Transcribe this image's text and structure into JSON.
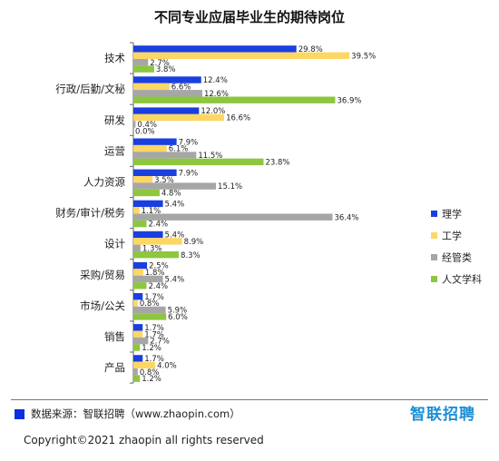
{
  "chart_data": {
    "type": "bar",
    "orientation": "horizontal",
    "title": "不同专业应届毕业生的期待岗位",
    "categories": [
      "技术",
      "行政/后勤/文秘",
      "研发",
      "运营",
      "人力资源",
      "财务/审计/税务",
      "设计",
      "采购/贸易",
      "市场/公关",
      "销售",
      "产品"
    ],
    "series": [
      {
        "name": "理学",
        "color": "#1a3fe0",
        "values": [
          29.8,
          12.4,
          12.0,
          7.9,
          7.9,
          5.4,
          5.4,
          2.5,
          1.7,
          1.7,
          1.7
        ],
        "labels": [
          "29.8%",
          "12.4%",
          "12.0%",
          "7.9%",
          "7.9%",
          "5.4%",
          "5.4%",
          "2.5%",
          "1.7%",
          "1.7%",
          "1.7%"
        ]
      },
      {
        "name": "工学",
        "color": "#fdd663",
        "values": [
          39.5,
          6.6,
          16.6,
          6.1,
          3.5,
          1.1,
          8.9,
          1.8,
          0.8,
          1.7,
          4.0
        ],
        "labels": [
          "39.5%",
          "6.6%",
          "16.6%",
          "6.1%",
          "3.5%",
          "1.1%",
          "8.9%",
          "1.8%",
          "0.8%",
          "1.7%",
          "4.0%"
        ]
      },
      {
        "name": "经管类",
        "color": "#a6a6a6",
        "values": [
          2.7,
          12.6,
          0.4,
          11.5,
          15.1,
          36.4,
          1.3,
          5.4,
          5.9,
          2.7,
          0.8
        ],
        "labels": [
          "2.7%",
          "12.6%",
          "0.4%",
          "11.5%",
          "15.1%",
          "36.4%",
          "1.3%",
          "5.4%",
          "5.9%",
          "2.7%",
          "0.8%"
        ]
      },
      {
        "name": "人文学科",
        "color": "#8dc63f",
        "values": [
          3.8,
          36.9,
          0.0,
          23.8,
          4.8,
          2.4,
          8.3,
          2.4,
          6.0,
          1.2,
          1.2
        ],
        "labels": [
          "3.8%",
          "36.9%",
          "0.0%",
          "23.8%",
          "4.8%",
          "2.4%",
          "8.3%",
          "2.4%",
          "6.0%",
          "1.2%",
          "1.2%"
        ]
      }
    ],
    "xlim": [
      0,
      40
    ],
    "legend_position": "right",
    "grid": false
  },
  "footer": {
    "source": "数据来源：智联招聘（www.zhaopin.com）",
    "brand": "智联招聘",
    "copyright": "Copyright©2021 zhaopin all rights reserved",
    "source_marker_color": "#0d2fe0",
    "brand_color": "#1d8fd4"
  }
}
